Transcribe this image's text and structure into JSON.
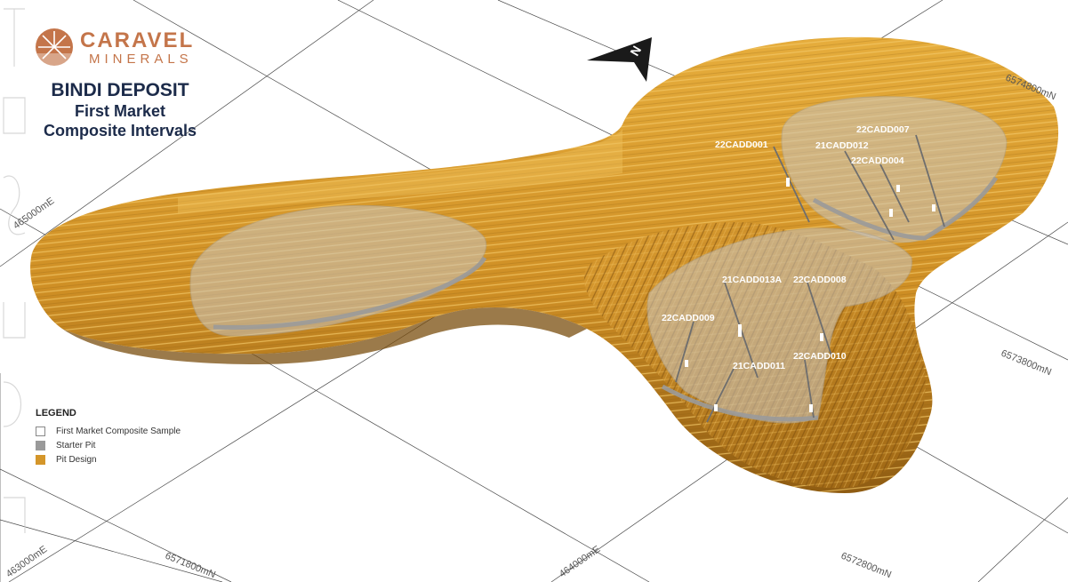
{
  "brand": {
    "name": "CARAVEL",
    "sub": "MINERALS",
    "color": "#c4754a"
  },
  "title": {
    "line1": "BINDI DEPOSIT",
    "line2": "First Market",
    "line3": "Composite Intervals",
    "color": "#1c2b4a"
  },
  "north_arrow": {
    "label": "N",
    "icon": "north-arrow-icon"
  },
  "grid_labels": {
    "e_463000": "463000mE",
    "e_464000": "464000mE",
    "e_465000": "465000mE",
    "n_6571800": "6571800mN",
    "n_6572800": "6572800mN",
    "n_6573800": "6573800mN",
    "n_6574800": "6574800mN"
  },
  "drillholes": [
    "22CADD001",
    "21CADD012",
    "22CADD007",
    "22CADD004",
    "21CADD013A",
    "22CADD008",
    "22CADD009",
    "22CADD010",
    "21CADD011"
  ],
  "legend": {
    "title": "LEGEND",
    "items": [
      {
        "label": "First Market Composite Sample",
        "color": "#ffffff"
      },
      {
        "label": "Starter Pit",
        "color": "#9a9a9a"
      },
      {
        "label": "Pit Design",
        "color": "#d4962a"
      }
    ]
  },
  "colors": {
    "pit": "#d4962a",
    "pit_dark": "#8a5a10",
    "starter_pit": "#b9b7b3",
    "grid": "#555555"
  }
}
